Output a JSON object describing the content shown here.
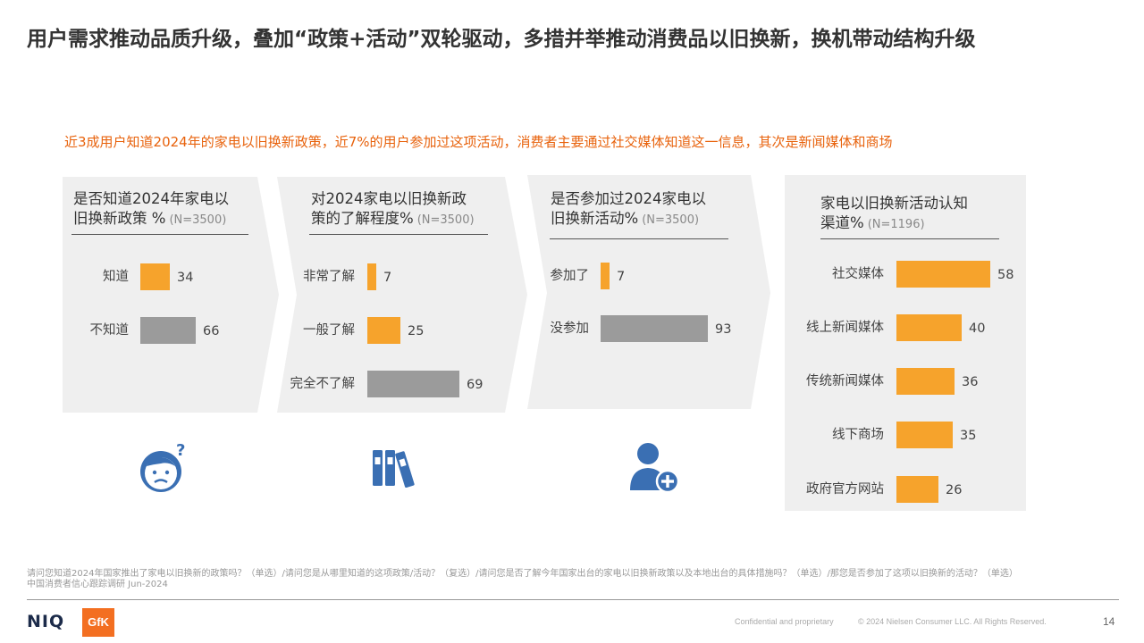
{
  "title": "用户需求推动品质升级，叠加“政策+活动”双轮驱动，多措并举推动消费品以旧换新，换机带动结构升级",
  "subtitle": "近3成用户知道2024年的家电以旧换新政策，近7%的用户参加过这项活动，消费者主要通过社交媒体知道这一信息，其次是新闻媒体和商场",
  "colors": {
    "accent": "#f6a32c",
    "gray_bar": "#9b9b9b",
    "subtitle": "#e8620c",
    "icon_blue": "#3a6fb3"
  },
  "panels": [
    {
      "title_line1": "是否知道2024年家电以",
      "title_line2": "旧换新政策 %",
      "n": "(N=3500)",
      "icon": "confused-face-icon",
      "rows": [
        {
          "label": "知道",
          "value": "34",
          "v": 34,
          "color": "orange"
        },
        {
          "label": "不知道",
          "value": "66",
          "v": 66,
          "color": "gray"
        }
      ]
    },
    {
      "title_line1": "对2024家电以旧换新政",
      "title_line2": "策的了解程度%",
      "n": "(N=3500)",
      "icon": "binders-icon",
      "rows": [
        {
          "label": "非常了解",
          "value": "7",
          "v": 7,
          "color": "orange"
        },
        {
          "label": "一般了解",
          "value": "25",
          "v": 25,
          "color": "orange"
        },
        {
          "label": "完全不了解",
          "value": "69",
          "v": 69,
          "color": "gray"
        }
      ]
    },
    {
      "title_line1": "是否参加过2024家电以",
      "title_line2": "旧换新活动%",
      "n": "(N=3500)",
      "icon": "add-user-icon",
      "rows": [
        {
          "label": "参加了",
          "value": "7",
          "v": 7,
          "color": "orange"
        },
        {
          "label": "没参加",
          "value": "93",
          "v": 93,
          "color": "gray"
        }
      ]
    },
    {
      "title_line1": "家电以旧换新活动认知",
      "title_line2": "渠道%",
      "n": "(N=1196)",
      "rows": [
        {
          "label": "社交媒体",
          "value": "58",
          "v": 58,
          "color": "orange"
        },
        {
          "label": "线上新闻媒体",
          "value": "40",
          "v": 40,
          "color": "orange"
        },
        {
          "label": "传统新闻媒体",
          "value": "36",
          "v": 36,
          "color": "orange"
        },
        {
          "label": "线下商场",
          "value": "35",
          "v": 35,
          "color": "orange"
        },
        {
          "label": "政府官方网站",
          "value": "26",
          "v": 26,
          "color": "orange"
        }
      ]
    }
  ],
  "footnote_line1": "请问您知道2024年国家推出了家电以旧换新的政策吗？（单选）/请问您是从哪里知道的这项政策/活动？（复选）/请问您是否了解今年国家出台的家电以旧换新政策以及本地出台的具体措施吗？（单选）/那您是否参加了这项以旧换新的活动？（单选）",
  "footnote_line2": "中国消费者信心跟踪调研 Jun-2024",
  "footer": {
    "niq": "NIQ",
    "gfk": "GfK",
    "confidential": "Confidential and proprietary",
    "copyright": "© 2024 Nielsen Consumer LLC. All Rights Reserved.",
    "page": "14"
  }
}
